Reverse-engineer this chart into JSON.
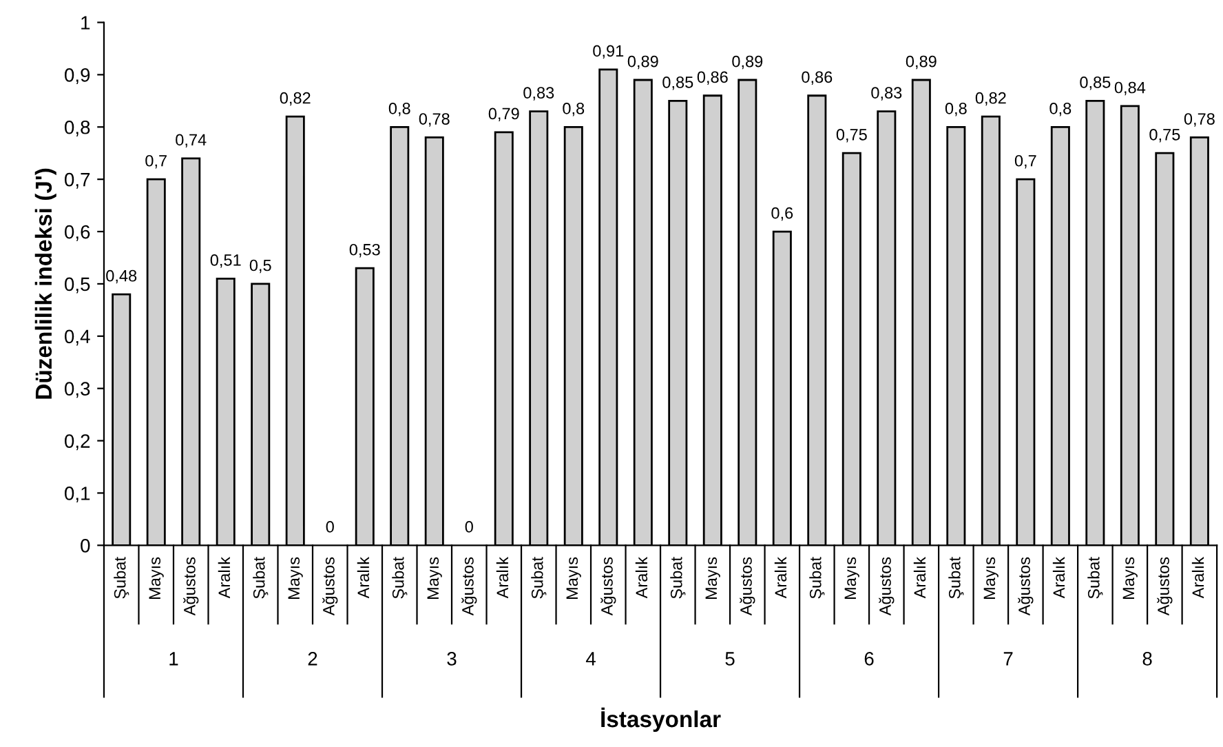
{
  "chart_data": {
    "type": "bar",
    "xlabel": "İstasyonlar",
    "ylabel": "Düzenlilik indeksi (J')",
    "categories": [
      "Şubat",
      "Mayıs",
      "Ağustos",
      "Aralık",
      "Şubat",
      "Mayıs",
      "Ağustos",
      "Aralık",
      "Şubat",
      "Mayıs",
      "Ağustos",
      "Aralık",
      "Şubat",
      "Mayıs",
      "Ağustos",
      "Aralık",
      "Şubat",
      "Mayıs",
      "Ağustos",
      "Aralık",
      "Şubat",
      "Mayıs",
      "Ağustos",
      "Aralık",
      "Şubat",
      "Mayıs",
      "Ağustos",
      "Aralık",
      "Şubat",
      "Mayıs",
      "Ağustos",
      "Aralık"
    ],
    "values": [
      0.48,
      0.7,
      0.74,
      0.51,
      0.5,
      0.82,
      0,
      0.53,
      0.8,
      0.78,
      0,
      0.79,
      0.83,
      0.8,
      0.91,
      0.89,
      0.85,
      0.86,
      0.89,
      0.6,
      0.86,
      0.75,
      0.83,
      0.89,
      0.8,
      0.82,
      0.7,
      0.8,
      0.85,
      0.84,
      0.75,
      0.78
    ],
    "color": "#d0d0d0",
    "annotations": [
      "1",
      "2",
      "3",
      "4",
      "5",
      "6",
      "7",
      "8"
    ],
    "ylim": [
      0,
      1
    ],
    "yticks": [
      0,
      {
        "value": 0.1,
        "label": "0,1"
      },
      {
        "value": 0.2,
        "label": "0,2"
      },
      {
        "value": 0.3,
        "label": "0,3"
      },
      {
        "value": 0.4,
        "label": "0,4"
      },
      {
        "value": 0.5,
        "label": "0,5"
      },
      {
        "value": 0.6,
        "label": "0,6"
      },
      {
        "value": 0.7,
        "label": "0,7"
      },
      {
        "value": 0.8,
        "label": "0,8"
      },
      {
        "value": 0.9,
        "label": "0,9"
      },
      1
    ],
    "value_labels": [
      "0,48",
      "0,7",
      "0,74",
      "0,51",
      "0,5",
      "0,82",
      "0",
      "0,53",
      "0,8",
      "0,78",
      "0",
      "0,79",
      "0,83",
      "0,8",
      "0,91",
      "0,89",
      "0,85",
      "0,86",
      "0,89",
      "0,6",
      "0,86",
      "0,75",
      "0,83",
      "0,89",
      "0,8",
      "0,82",
      "0,7",
      "0,8",
      "0,85",
      "0,84",
      "0,75",
      "0,78"
    ],
    "grid": false,
    "legend": false
  }
}
